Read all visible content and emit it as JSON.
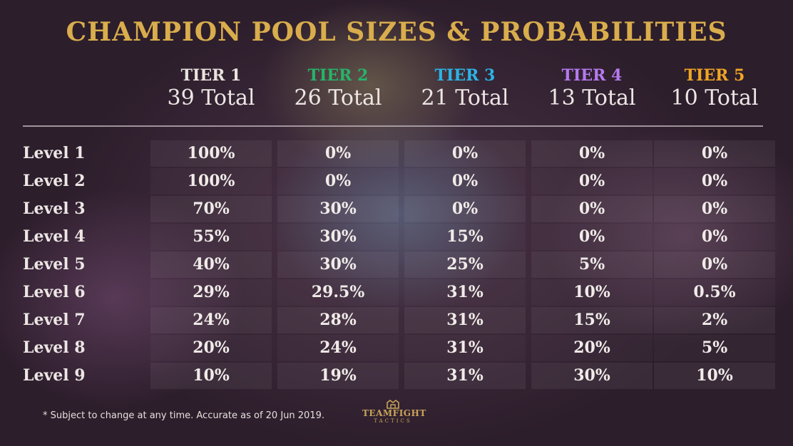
{
  "title": "CHAMPION POOL SIZES & PROBABILITIES",
  "tiers": [
    {
      "label": "TIER 1",
      "total": "39 Total",
      "color": "#e9e3de"
    },
    {
      "label": "TIER 2",
      "total": "26 Total",
      "color": "#27b36b"
    },
    {
      "label": "TIER 3",
      "total": "21 Total",
      "color": "#2bb4e6"
    },
    {
      "label": "TIER 4",
      "total": "13 Total",
      "color": "#b57af0"
    },
    {
      "label": "TIER 5",
      "total": "10 Total",
      "color": "#f0a623"
    }
  ],
  "rows": [
    {
      "label": "Level 1",
      "values": [
        "100%",
        "0%",
        "0%",
        "0%",
        "0%"
      ]
    },
    {
      "label": "Level 2",
      "values": [
        "100%",
        "0%",
        "0%",
        "0%",
        "0%"
      ]
    },
    {
      "label": "Level 3",
      "values": [
        "70%",
        "30%",
        "0%",
        "0%",
        "0%"
      ]
    },
    {
      "label": "Level 4",
      "values": [
        "55%",
        "30%",
        "15%",
        "0%",
        "0%"
      ]
    },
    {
      "label": "Level 5",
      "values": [
        "40%",
        "30%",
        "25%",
        "5%",
        "0%"
      ]
    },
    {
      "label": "Level 6",
      "values": [
        "29%",
        "29.5%",
        "31%",
        "10%",
        "0.5%"
      ]
    },
    {
      "label": "Level 7",
      "values": [
        "24%",
        "28%",
        "31%",
        "15%",
        "2%"
      ]
    },
    {
      "label": "Level 8",
      "values": [
        "20%",
        "24%",
        "31%",
        "20%",
        "5%"
      ]
    },
    {
      "label": "Level 9",
      "values": [
        "10%",
        "19%",
        "31%",
        "30%",
        "10%"
      ]
    }
  ],
  "footnote": "* Subject to change at any time. Accurate as of 20 Jun 2019.",
  "logo": {
    "word": "TEAMFIGHT",
    "sub": "TACTICS",
    "icon": "teamfight-tactics-crest-icon"
  }
}
